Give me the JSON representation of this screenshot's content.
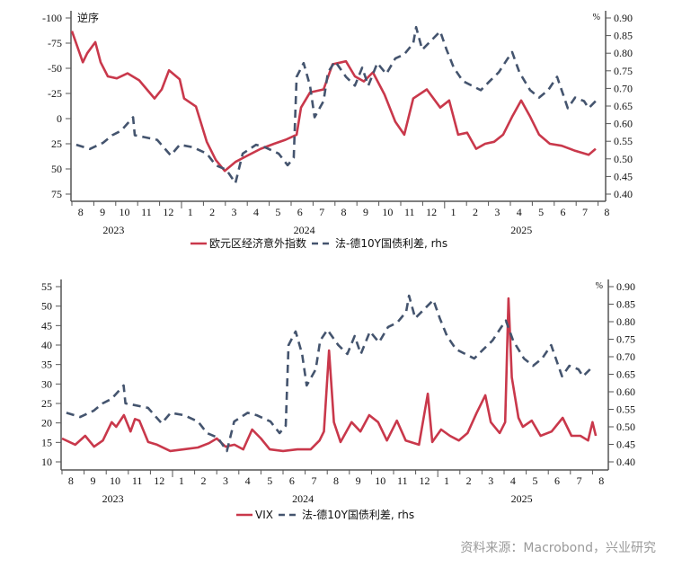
{
  "source_note": "资料来源：Macrobond，兴业研究",
  "colors": {
    "red": "#c9384b",
    "blue": "#44546e",
    "axis": "#555555"
  },
  "chart_data": [
    {
      "type": "line",
      "title": "",
      "xlabel": "",
      "x_unit": "months since 2023-08-01",
      "left_axis_note": "逆序",
      "right_axis_note": "%",
      "left_ylim": [
        -100,
        75
      ],
      "left_inverted": true,
      "left_ticks": [
        "-100",
        "-75",
        "-50",
        "-25",
        "0",
        "25",
        "50",
        "75"
      ],
      "right_ylim": [
        0.4,
        0.9
      ],
      "right_ticks": [
        "0.90",
        "0.85",
        "0.80",
        "0.75",
        "0.70",
        "0.65",
        "0.60",
        "0.55",
        "0.50",
        "0.45",
        "0.40"
      ],
      "month_labels": [
        "8",
        "9",
        "10",
        "11",
        "12",
        "1",
        "2",
        "3",
        "4",
        "5",
        "6",
        "7",
        "8",
        "9",
        "10",
        "11",
        "12",
        "1",
        "2",
        "3",
        "4",
        "5",
        "6",
        "7",
        "8"
      ],
      "year_labels": [
        {
          "label": "2023",
          "month": 1.9
        },
        {
          "label": "2024",
          "month": 10.6
        },
        {
          "label": "2025",
          "month": 20.5
        }
      ],
      "legend": [
        "欧元区经济意外指数",
        "法-德10Y国债利差, rhs"
      ],
      "legend_placement": "bottom",
      "series": [
        {
          "name": "欧元区经济意外指数",
          "axis": "left",
          "style": "solid",
          "points": [
            [
              0,
              -87
            ],
            [
              0.5,
              -56
            ],
            [
              0.7,
              -65
            ],
            [
              1.07,
              -76
            ],
            [
              1.31,
              -56
            ],
            [
              1.64,
              -42
            ],
            [
              2.05,
              -40
            ],
            [
              2.54,
              -45
            ],
            [
              3.07,
              -38
            ],
            [
              3.77,
              -20
            ],
            [
              4.1,
              -29
            ],
            [
              4.43,
              -48
            ],
            [
              4.92,
              -39
            ],
            [
              5.12,
              -20
            ],
            [
              5.66,
              -12
            ],
            [
              6.15,
              23
            ],
            [
              6.56,
              41
            ],
            [
              6.97,
              52
            ],
            [
              7.46,
              43
            ],
            [
              7.99,
              37
            ],
            [
              8.61,
              30
            ],
            [
              9.22,
              25
            ],
            [
              9.75,
              21
            ],
            [
              10.25,
              16
            ],
            [
              10.45,
              -11
            ],
            [
              10.86,
              -26
            ],
            [
              11.48,
              -29
            ],
            [
              11.89,
              -54
            ],
            [
              12.5,
              -57
            ],
            [
              12.91,
              -42
            ],
            [
              13.32,
              -37
            ],
            [
              13.73,
              -46
            ],
            [
              14.26,
              -24
            ],
            [
              14.75,
              3
            ],
            [
              15.16,
              16
            ],
            [
              15.57,
              -20
            ],
            [
              16.19,
              -29
            ],
            [
              16.8,
              -11
            ],
            [
              17.21,
              -18
            ],
            [
              17.62,
              16
            ],
            [
              18.03,
              14
            ],
            [
              18.44,
              30
            ],
            [
              18.85,
              25
            ],
            [
              19.26,
              23
            ],
            [
              19.67,
              16
            ],
            [
              20.08,
              -2
            ],
            [
              20.49,
              -18
            ],
            [
              20.9,
              -2
            ],
            [
              21.31,
              16
            ],
            [
              21.8,
              25
            ],
            [
              22.34,
              27
            ],
            [
              22.95,
              32
            ],
            [
              23.57,
              36
            ],
            [
              23.89,
              30
            ]
          ]
        },
        {
          "name": "法-德10Y国债利差, rhs",
          "axis": "right",
          "style": "dashed",
          "points": [
            [
              0.2,
              0.54
            ],
            [
              0.82,
              0.528
            ],
            [
              1.43,
              0.546
            ],
            [
              1.84,
              0.567
            ],
            [
              2.25,
              0.58
            ],
            [
              2.79,
              0.618
            ],
            [
              2.87,
              0.567
            ],
            [
              3.28,
              0.562
            ],
            [
              3.89,
              0.554
            ],
            [
              4.51,
              0.51
            ],
            [
              4.92,
              0.54
            ],
            [
              5.53,
              0.533
            ],
            [
              6.15,
              0.515
            ],
            [
              6.56,
              0.482
            ],
            [
              7.05,
              0.469
            ],
            [
              7.46,
              0.431
            ],
            [
              7.79,
              0.515
            ],
            [
              8.4,
              0.54
            ],
            [
              8.81,
              0.533
            ],
            [
              9.43,
              0.515
            ],
            [
              9.84,
              0.482
            ],
            [
              10.12,
              0.503
            ],
            [
              10.25,
              0.733
            ],
            [
              10.57,
              0.772
            ],
            [
              10.86,
              0.708
            ],
            [
              11.07,
              0.618
            ],
            [
              11.48,
              0.664
            ],
            [
              11.68,
              0.746
            ],
            [
              12.01,
              0.777
            ],
            [
              12.5,
              0.733
            ],
            [
              12.91,
              0.708
            ],
            [
              13.24,
              0.759
            ],
            [
              13.52,
              0.708
            ],
            [
              13.93,
              0.772
            ],
            [
              14.34,
              0.741
            ],
            [
              14.75,
              0.785
            ],
            [
              15.16,
              0.797
            ],
            [
              15.57,
              0.828
            ],
            [
              15.7,
              0.874
            ],
            [
              15.98,
              0.81
            ],
            [
              16.39,
              0.836
            ],
            [
              16.8,
              0.862
            ],
            [
              17.09,
              0.81
            ],
            [
              17.42,
              0.759
            ],
            [
              17.83,
              0.721
            ],
            [
              18.24,
              0.708
            ],
            [
              18.65,
              0.695
            ],
            [
              19.06,
              0.721
            ],
            [
              19.47,
              0.746
            ],
            [
              19.88,
              0.785
            ],
            [
              20.08,
              0.803
            ],
            [
              20.41,
              0.746
            ],
            [
              20.9,
              0.695
            ],
            [
              21.31,
              0.674
            ],
            [
              21.72,
              0.695
            ],
            [
              22.13,
              0.733
            ],
            [
              22.34,
              0.695
            ],
            [
              22.62,
              0.644
            ],
            [
              22.95,
              0.674
            ],
            [
              23.36,
              0.664
            ],
            [
              23.57,
              0.644
            ],
            [
              23.89,
              0.664
            ]
          ]
        }
      ]
    },
    {
      "type": "line",
      "title": "",
      "xlabel": "",
      "x_unit": "months since 2023-08-01",
      "right_axis_note": "%",
      "left_ylim": [
        10,
        55
      ],
      "left_ticks": [
        "55",
        "50",
        "45",
        "40",
        "35",
        "30",
        "25",
        "20",
        "15",
        "10"
      ],
      "right_ylim": [
        0.4,
        0.9
      ],
      "right_ticks": [
        "0.90",
        "0.85",
        "0.80",
        "0.75",
        "0.70",
        "0.65",
        "0.60",
        "0.55",
        "0.50",
        "0.45",
        "0.40"
      ],
      "month_labels": [
        "8",
        "9",
        "10",
        "11",
        "12",
        "1",
        "2",
        "3",
        "4",
        "5",
        "6",
        "7",
        "8",
        "9",
        "10",
        "11",
        "12",
        "1",
        "2",
        "3",
        "4",
        "5",
        "6",
        "7",
        "8"
      ],
      "year_labels": [
        {
          "label": "2023",
          "month": 2.3
        },
        {
          "label": "2024",
          "month": 10.9
        },
        {
          "label": "2025",
          "month": 20.8
        }
      ],
      "legend": [
        "VIX",
        "法-德10Y国债利差, rhs"
      ],
      "legend_placement": "bottom",
      "series": [
        {
          "name": "VIX",
          "axis": "left",
          "style": "solid",
          "points": [
            [
              0,
              16
            ],
            [
              0.6,
              14.4
            ],
            [
              1.05,
              16.7
            ],
            [
              1.45,
              13.9
            ],
            [
              1.85,
              15.5
            ],
            [
              2.25,
              20.2
            ],
            [
              2.45,
              19
            ],
            [
              2.8,
              22
            ],
            [
              3.1,
              17.8
            ],
            [
              3.3,
              21
            ],
            [
              3.5,
              20.6
            ],
            [
              3.9,
              15.1
            ],
            [
              4.3,
              14.4
            ],
            [
              4.9,
              12.8
            ],
            [
              5.5,
              13.2
            ],
            [
              6.15,
              13.7
            ],
            [
              6.65,
              14.8
            ],
            [
              7.0,
              16
            ],
            [
              7.4,
              13.9
            ],
            [
              7.8,
              14.4
            ],
            [
              8.2,
              13.2
            ],
            [
              8.6,
              18.3
            ],
            [
              9.0,
              16
            ],
            [
              9.4,
              13.2
            ],
            [
              10.0,
              12.8
            ],
            [
              10.65,
              13.2
            ],
            [
              11.25,
              13.2
            ],
            [
              11.65,
              15.5
            ],
            [
              11.85,
              17.8
            ],
            [
              12.08,
              38.6
            ],
            [
              12.3,
              20.2
            ],
            [
              12.6,
              15.1
            ],
            [
              13.1,
              20.2
            ],
            [
              13.5,
              17.8
            ],
            [
              13.9,
              22
            ],
            [
              14.3,
              20.2
            ],
            [
              14.7,
              15.5
            ],
            [
              15.15,
              20.6
            ],
            [
              15.55,
              15.5
            ],
            [
              16.15,
              14.4
            ],
            [
              16.55,
              27.5
            ],
            [
              16.75,
              15.1
            ],
            [
              17.15,
              18.3
            ],
            [
              17.55,
              16.7
            ],
            [
              17.95,
              15.5
            ],
            [
              18.35,
              17.4
            ],
            [
              18.75,
              22.5
            ],
            [
              19.15,
              27.1
            ],
            [
              19.4,
              20.2
            ],
            [
              19.8,
              17.4
            ],
            [
              20.05,
              20.2
            ],
            [
              20.2,
              52
            ],
            [
              20.35,
              31.7
            ],
            [
              20.65,
              21.3
            ],
            [
              20.85,
              19
            ],
            [
              21.25,
              20.6
            ],
            [
              21.65,
              16.7
            ],
            [
              22.15,
              17.8
            ],
            [
              22.65,
              21.3
            ],
            [
              23.05,
              16.7
            ],
            [
              23.45,
              16.7
            ],
            [
              23.8,
              15.5
            ],
            [
              24.0,
              20.2
            ],
            [
              24.15,
              16.7
            ]
          ]
        },
        {
          "name": "法-德10Y国债利差, rhs",
          "axis": "right",
          "style": "dashed",
          "points": "same as top chart"
        }
      ]
    }
  ]
}
